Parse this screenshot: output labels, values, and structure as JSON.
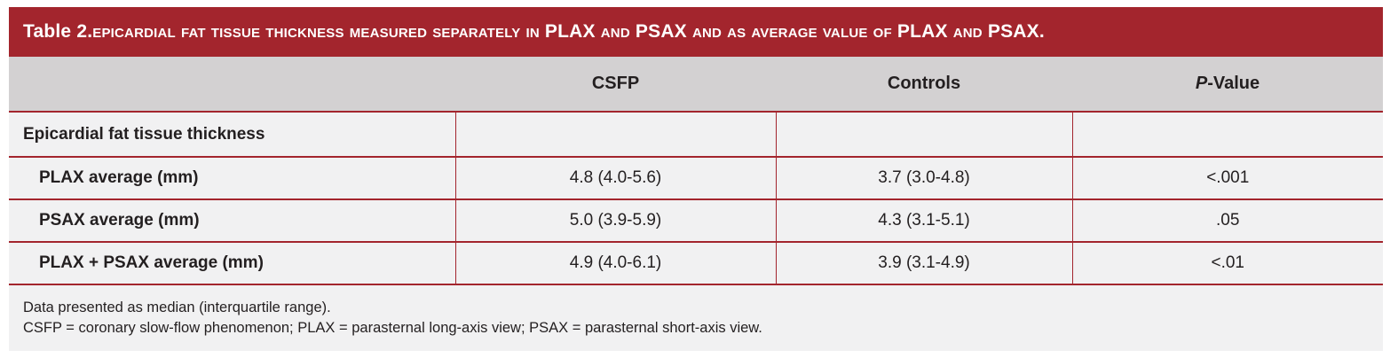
{
  "title": {
    "prefix": "Table 2. ",
    "text_parts": [
      {
        "t": "epicardial fat tissue thickness measured separately in ",
        "caps": true
      },
      {
        "t": "PLAX",
        "caps": false
      },
      {
        "t": " and ",
        "caps": true
      },
      {
        "t": "PSAX",
        "caps": false
      },
      {
        "t": " and as average value of ",
        "caps": true
      },
      {
        "t": "PLAX",
        "caps": false
      },
      {
        "t": " and ",
        "caps": true
      },
      {
        "t": "PSAX",
        "caps": false
      },
      {
        "t": ".",
        "caps": false
      }
    ]
  },
  "columns": [
    "",
    "CSFP",
    "Controls",
    "P",
    "-Value"
  ],
  "group_label": "Epicardial fat tissue thickness",
  "rows": [
    {
      "label": "PLAX average (mm)",
      "csfp": "4.8 (4.0-5.6)",
      "controls": "3.7 (3.0-4.8)",
      "p": "<.001"
    },
    {
      "label": "PSAX average (mm)",
      "csfp": "5.0 (3.9-5.9)",
      "controls": "4.3 (3.1-5.1)",
      "p": ".05"
    },
    {
      "label": "PLAX + PSAX average (mm)",
      "csfp": "4.9 (4.0-6.1)",
      "controls": "3.9 (3.1-4.9)",
      "p": "<.01"
    }
  ],
  "notes": [
    "Data presented as median (interquartile range).",
    "CSFP = coronary slow-flow phenomenon; PLAX = parasternal long-axis view; PSAX = parasternal short-axis view."
  ],
  "colors": {
    "accent": "#a3252d",
    "header_bg": "#d3d1d2",
    "panel_bg": "#f1f1f2"
  }
}
